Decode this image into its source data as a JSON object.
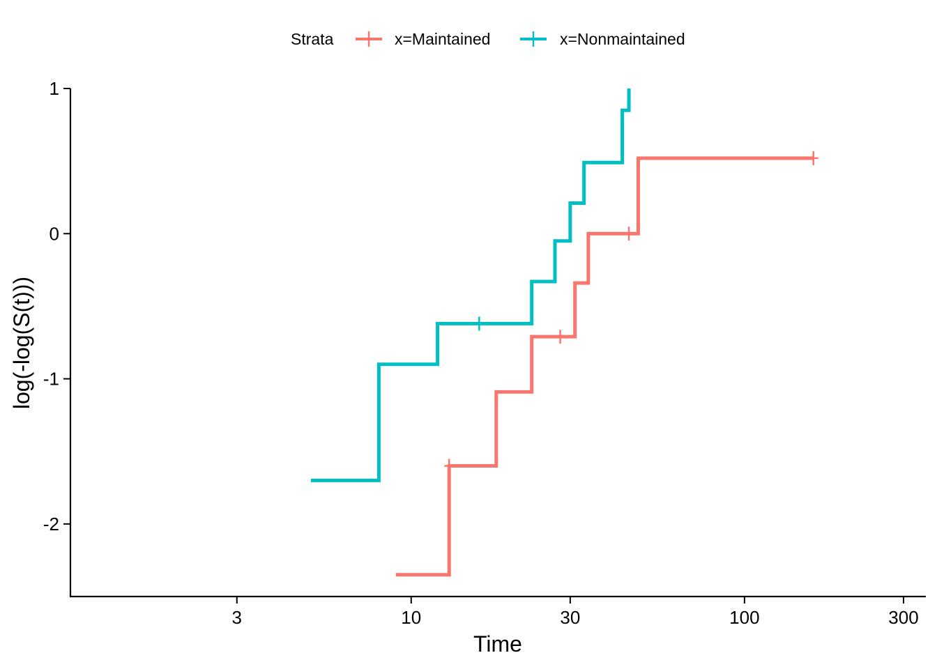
{
  "chart_data": {
    "type": "line",
    "step": true,
    "title": "",
    "xlabel": "Time",
    "ylabel": "log(-log(S(t)))",
    "x_scale": "log10",
    "xlim": [
      0.95,
      350
    ],
    "ylim": [
      -2.5,
      1.0
    ],
    "x_ticks": [
      3,
      10,
      30,
      100,
      300
    ],
    "x_tick_labels": [
      "3",
      "10",
      "30",
      "100",
      "300"
    ],
    "y_ticks": [
      -2,
      -1,
      0,
      1
    ],
    "y_tick_labels": [
      "-2",
      "-1",
      "0",
      "1"
    ],
    "grid": false,
    "legend": {
      "position": "top",
      "title": "Strata",
      "entries": [
        "x=Maintained",
        "x=Nonmaintained"
      ]
    },
    "colors": {
      "Maintained": "#F8766D",
      "Nonmaintained": "#00BFC4"
    },
    "series": [
      {
        "name": "x=Maintained",
        "color": "#F8766D",
        "x": [
          9,
          13,
          18,
          23,
          31,
          34,
          48,
          161
        ],
        "y": [
          -2.35,
          -1.6,
          -1.09,
          -0.71,
          -0.34,
          0.0,
          0.52,
          0.52
        ],
        "censored": [
          {
            "x": 13,
            "y": -1.6
          },
          {
            "x": 28,
            "y": -0.71
          },
          {
            "x": 45,
            "y": 0.0
          },
          {
            "x": 161,
            "y": 0.52
          }
        ]
      },
      {
        "name": "x=Nonmaintained",
        "color": "#00BFC4",
        "x": [
          5,
          8,
          12,
          23,
          27,
          30,
          33,
          43,
          45,
          45
        ],
        "y": [
          -1.7,
          -0.9,
          -0.62,
          -0.33,
          -0.05,
          0.21,
          0.49,
          0.85,
          0.85,
          1.0
        ],
        "censored": [
          {
            "x": 16,
            "y": -0.62
          }
        ]
      }
    ]
  }
}
